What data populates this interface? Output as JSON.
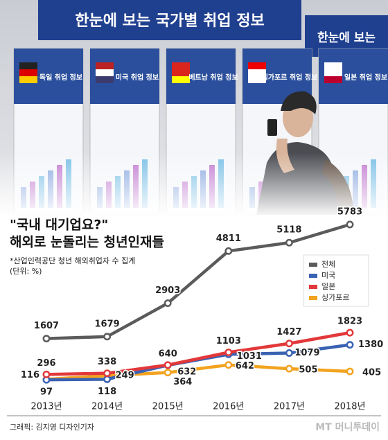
{
  "photo": {
    "banner": "한눈에 보는 국가별 취업 정보",
    "banner_right": "한눈에 보는",
    "posters": [
      "독일 취업 정보",
      "미국 취업 정보",
      "베트남 취업 정보",
      "싱가포르 취업 정보",
      "일본 취업 정보"
    ]
  },
  "chart_data": {
    "type": "line",
    "title": [
      "\"국내 대기업요?\"",
      "해외로 눈돌리는 청년인재들"
    ],
    "subtitle": [
      "*산업인력공단 청년 해외취업자 수 집계",
      "(단위: %)"
    ],
    "categories": [
      "2013년",
      "2014년",
      "2015년",
      "2016년",
      "2017년",
      "2018년"
    ],
    "series": [
      {
        "name": "전체",
        "color": "#5b5b5b",
        "values": [
          1607,
          1679,
          2903,
          4811,
          5118,
          5783
        ]
      },
      {
        "name": "미국",
        "color": "#3a62b3",
        "values": [
          97,
          118,
          632,
          1031,
          1079,
          1380
        ]
      },
      {
        "name": "일본",
        "color": "#e2383a",
        "values": [
          296,
          338,
          640,
          1103,
          1427,
          1823
        ]
      },
      {
        "name": "싱가포르",
        "color": "#f2a31f",
        "values": [
          116,
          249,
          364,
          642,
          505,
          405
        ]
      }
    ],
    "legend": "right"
  },
  "credit": "그래픽: 김지영 디자인기자",
  "watermark": "MT 머니투데이"
}
